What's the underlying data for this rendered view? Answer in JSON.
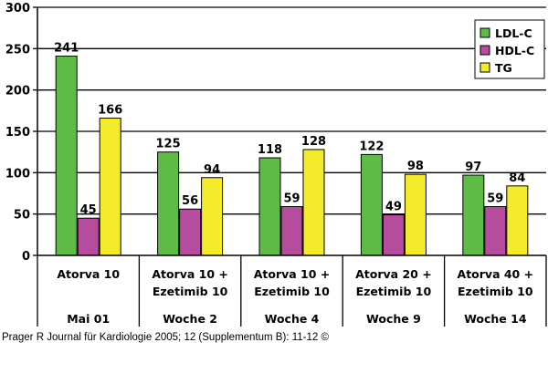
{
  "chart_data": {
    "type": "bar",
    "categories": [
      {
        "lines": [
          "Atorva 10"
        ],
        "period": "Mai 01"
      },
      {
        "lines": [
          "Atorva 10 +",
          "Ezetimib 10"
        ],
        "period": "Woche 2"
      },
      {
        "lines": [
          "Atorva 10 +",
          "Ezetimib 10"
        ],
        "period": "Woche 4"
      },
      {
        "lines": [
          "Atorva 20 +",
          "Ezetimib 10"
        ],
        "period": "Woche 9"
      },
      {
        "lines": [
          "Atorva 40 +",
          "Ezetimib 10"
        ],
        "period": "Woche 14"
      }
    ],
    "series": [
      {
        "name": "LDL-C",
        "color": "#5dbb46",
        "values": [
          241,
          125,
          118,
          122,
          97
        ]
      },
      {
        "name": "HDL-C",
        "color": "#b54c9e",
        "values": [
          45,
          56,
          59,
          49,
          59
        ]
      },
      {
        "name": "TG",
        "color": "#f4ec2a",
        "values": [
          166,
          94,
          128,
          98,
          84
        ]
      }
    ],
    "ylim": [
      0,
      300
    ],
    "yticks": [
      0,
      50,
      100,
      150,
      200,
      250,
      300
    ],
    "grid": true,
    "legend": "top-right",
    "title": "",
    "xlabel": "",
    "ylabel": ""
  },
  "source": "Prager R Journal für Kardiologie 2005; 12 (Supplementum B): 11-12 ©"
}
